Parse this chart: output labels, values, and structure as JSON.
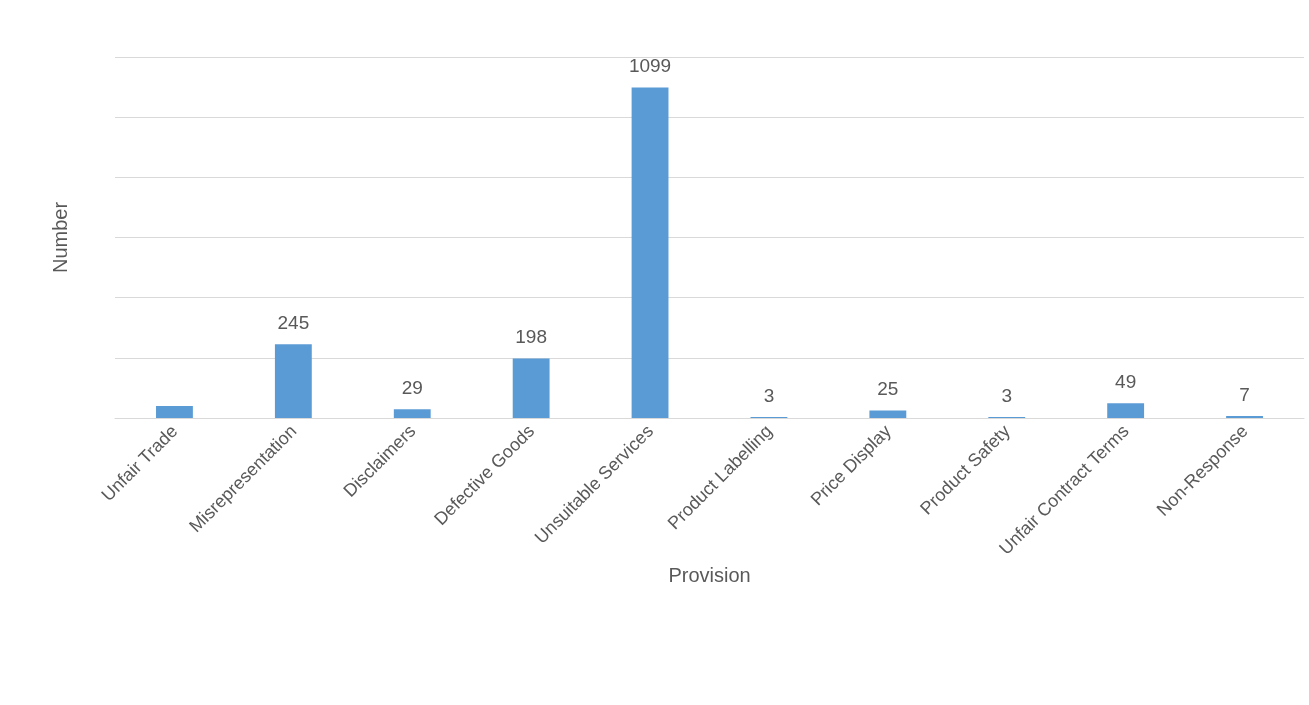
{
  "chart_data": {
    "type": "bar",
    "xlabel": "Provision",
    "ylabel": "Number",
    "categories": [
      "Unfair Trade",
      "Misrepresentation",
      "Disclaimers",
      "Defective Goods",
      "Unsuitable Services",
      "Product Labelling",
      "Price Display",
      "Product Safety",
      "Unfair Contract Terms",
      "Non-Response"
    ],
    "values": [
      40,
      245,
      29,
      198,
      1099,
      3,
      25,
      3,
      49,
      7
    ],
    "value_labels": [
      null,
      "245",
      "29",
      "198",
      "1099",
      "3",
      "25",
      "3",
      "49",
      "7"
    ],
    "color": "#5b9bd5",
    "ylim": [
      0,
      1200
    ],
    "yticks": [
      {
        "value": 0,
        "label": null
      },
      {
        "value": 200,
        "label": null
      },
      {
        "value": 400,
        "label": null
      },
      {
        "value": 600,
        "label": null
      },
      {
        "value": 800,
        "label": null
      },
      {
        "value": 1000,
        "label": null
      },
      {
        "value": 1200,
        "label": null
      }
    ],
    "grid": "y",
    "tick_labels": "x"
  }
}
